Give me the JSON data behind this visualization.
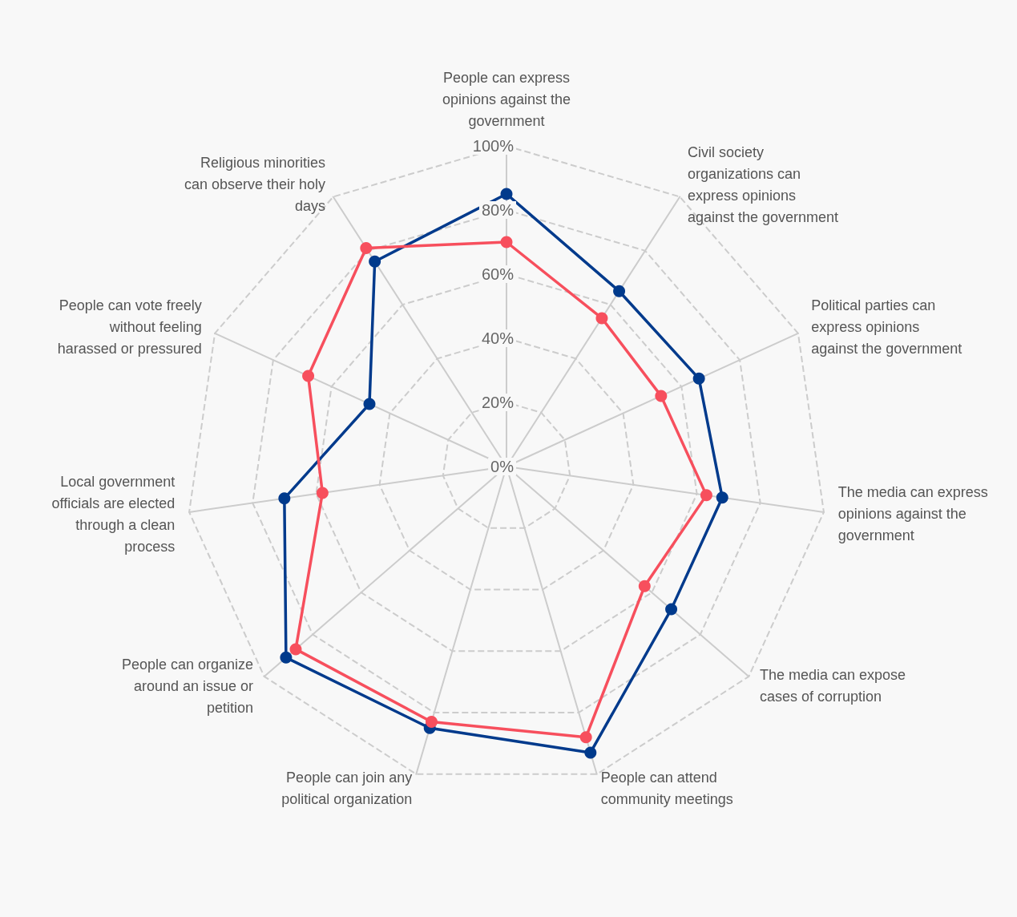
{
  "chart_data": {
    "type": "radar",
    "categories": [
      "People can express opinions against the government",
      "Civil society organizations can express opinions against the government",
      "Political parties can express opinions against the government",
      "The media can express opinions against the government",
      "The media can expose cases of corruption",
      "People can attend community meetings",
      "People can join any political organization",
      "People can organize around an issue or petition",
      "Local government officials are elected through a clean process",
      "People can vote freely without feeling harassed or pressured",
      "Religious minorities can observe their holy days"
    ],
    "series": [
      {
        "color": "#003a8c",
        "values": [
          85,
          65,
          66,
          68,
          68,
          93,
          85,
          91,
          70,
          47,
          76
        ]
      },
      {
        "color": "#f74f5d",
        "values": [
          70,
          55,
          53,
          63,
          57,
          88,
          83,
          87,
          58,
          68,
          81
        ]
      }
    ],
    "ylim": [
      0,
      100
    ],
    "yticks": [
      {
        "value": 0,
        "label": "0%"
      },
      {
        "value": 20,
        "label": "20%"
      },
      {
        "value": 40,
        "label": "40%"
      },
      {
        "value": 60,
        "label": "60%"
      },
      {
        "value": 80,
        "label": "80%"
      },
      {
        "value": 100,
        "label": "100%"
      }
    ],
    "grid": true,
    "marker": "circle",
    "line_style": "solid"
  }
}
